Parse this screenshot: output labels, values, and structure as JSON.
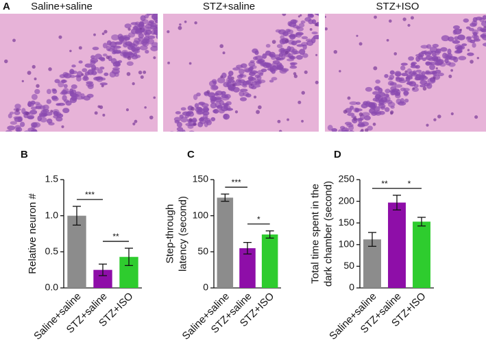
{
  "panel_a": {
    "label": "A",
    "titles": [
      "Saline+saline",
      "STZ+saline",
      "STZ+ISO"
    ]
  },
  "chart_data": [
    {
      "type": "bar",
      "label": "B",
      "ylabel": [
        "Relative neuron #"
      ],
      "categories": [
        "Saline+saline",
        "STZ+saline",
        "STZ+ISO"
      ],
      "values": [
        1.0,
        0.25,
        0.43
      ],
      "errors": [
        0.13,
        0.08,
        0.12
      ],
      "colors": [
        "#8c8c8c",
        "#8e0ea8",
        "#2ecc2e"
      ],
      "ylim": [
        0,
        1.5
      ],
      "yticks": [
        {
          "value": 0,
          "label": "0.0"
        },
        0.5,
        {
          "value": 1,
          "label": "1.0"
        },
        1.5
      ],
      "significance": [
        {
          "pair": [
            0,
            1
          ],
          "label": "***"
        },
        {
          "pair": [
            1,
            2
          ],
          "label": "**"
        }
      ]
    },
    {
      "type": "bar",
      "label": "C",
      "ylabel": [
        "Step-through",
        "latency (second)"
      ],
      "categories": [
        "Saline+saline",
        "STZ+saline",
        "STZ+ISO"
      ],
      "values": [
        125,
        55,
        74
      ],
      "errors": [
        5,
        8,
        5
      ],
      "colors": [
        "#8c8c8c",
        "#8e0ea8",
        "#2ecc2e"
      ],
      "ylim": [
        0,
        150
      ],
      "yticks": [
        0,
        50,
        100,
        150
      ],
      "significance": [
        {
          "pair": [
            0,
            1
          ],
          "label": "***"
        },
        {
          "pair": [
            1,
            2
          ],
          "label": "*"
        }
      ]
    },
    {
      "type": "bar",
      "label": "D",
      "ylabel": [
        "Total time spent in the",
        "dark chamber (second)"
      ],
      "categories": [
        "Saline+saline",
        "STZ+saline",
        "STZ+ISO"
      ],
      "values": [
        112,
        197,
        153
      ],
      "errors": [
        16,
        17,
        10
      ],
      "colors": [
        "#8c8c8c",
        "#8e0ea8",
        "#2ecc2e"
      ],
      "ylim": [
        0,
        250
      ],
      "yticks": [
        0,
        50,
        100,
        150,
        200,
        250
      ],
      "significance": [
        {
          "pair": [
            0,
            1
          ],
          "label": "**"
        },
        {
          "pair": [
            1,
            2
          ],
          "label": "*"
        }
      ]
    }
  ]
}
